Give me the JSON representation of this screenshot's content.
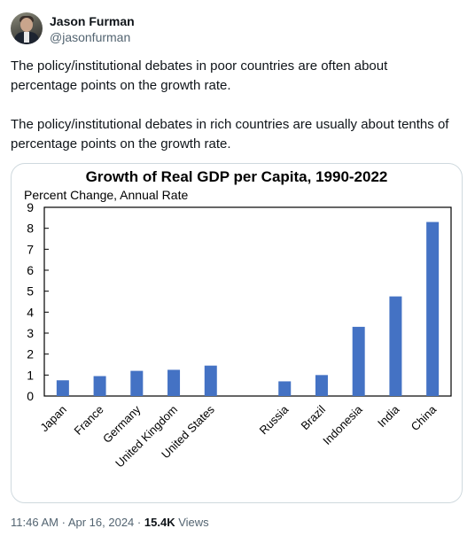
{
  "author": {
    "name": "Jason Furman",
    "handle": "@jasonfurman"
  },
  "tweet": {
    "paragraphs": [
      "The policy/institutional debates in poor countries are often about percentage points on the growth rate.",
      "The policy/institutional debates in rich countries are usually about tenths of percentage points on the growth rate."
    ]
  },
  "meta": {
    "time": "11:46 AM",
    "sep1": "·",
    "date": "Apr 16, 2024",
    "sep2": "·",
    "views_count": "15.4K",
    "views_label": "Views"
  },
  "colors": {
    "bar": "#4472c4",
    "text": "#0f1419",
    "muted": "#536471",
    "border": "#cfd9de"
  },
  "chart_data": {
    "type": "bar",
    "title": "Growth of Real GDP per Capita, 1990-2022",
    "ylabel": "Percent Change, Annual Rate",
    "xlabel": "",
    "ylim": [
      0,
      9
    ],
    "yticks": [
      0,
      1,
      2,
      3,
      4,
      5,
      6,
      7,
      8,
      9
    ],
    "grid": false,
    "categories": [
      "Japan",
      "France",
      "Germany",
      "United Kingdom",
      "United States",
      "",
      "Russia",
      "Brazil",
      "Indonesia",
      "India",
      "China"
    ],
    "values": [
      0.75,
      0.95,
      1.2,
      1.25,
      1.45,
      null,
      0.7,
      1.0,
      3.3,
      4.75,
      8.3
    ]
  }
}
